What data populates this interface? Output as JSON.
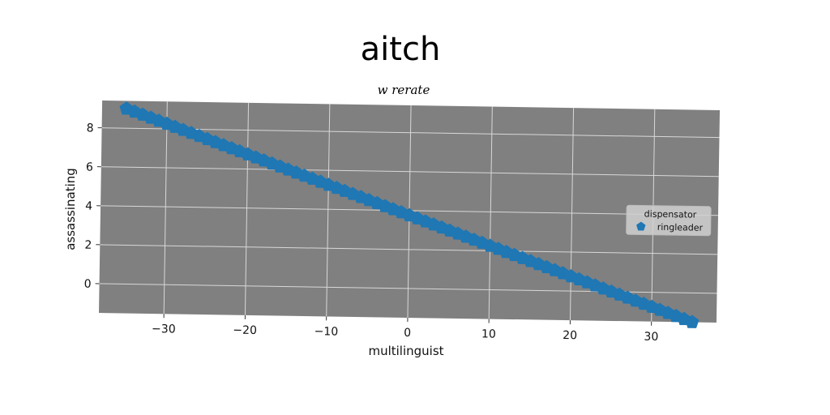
{
  "title": "aitch",
  "subtitle": "w rerate",
  "chart_data": {
    "type": "scatter",
    "xlabel": "multilinguist",
    "ylabel": "assassinating",
    "xlim": [
      -38,
      38
    ],
    "ylim": [
      -1.5,
      9.4
    ],
    "xticks": [
      -30,
      -20,
      -10,
      0,
      10,
      20,
      30
    ],
    "xtick_labels": [
      "−30",
      "−20",
      "−10",
      "0",
      "10",
      "20",
      "30"
    ],
    "yticks": [
      0,
      2,
      4,
      6,
      8
    ],
    "ytick_labels": [
      "0",
      "2",
      "4",
      "6",
      "8"
    ],
    "grid": true,
    "background": "#808080",
    "legend": {
      "title": "dispensator",
      "placement": "center-right"
    },
    "series": [
      {
        "name": "ringleader",
        "color": "#1f77b4",
        "marker": "pentagon",
        "x_start": -35,
        "x_end": 35,
        "x_step": 1,
        "y_at_x_start": 9.0,
        "y_at_x_end": -1.5
      }
    ]
  }
}
